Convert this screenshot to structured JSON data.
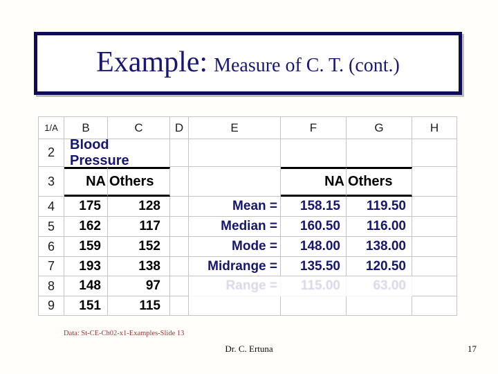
{
  "slide": {
    "title_prefix": "Example:",
    "title_suffix": "Measure of C. T. (cont.)"
  },
  "sheet": {
    "corner_label": "1/A",
    "column_headers": [
      "B",
      "C",
      "D",
      "E",
      "F",
      "G",
      "H"
    ],
    "row2_number": "2",
    "row3_number": "3",
    "merged_title": "Blood Pressure",
    "group_header_left": {
      "na": "NA",
      "others": "Others"
    },
    "group_header_right": {
      "na": "NA",
      "others": "Others"
    },
    "data_rows": [
      {
        "num": "4",
        "na": "175",
        "others": "128",
        "stat_label": "Mean =",
        "stat_na": "158.15",
        "stat_others": "119.50",
        "ghost": false
      },
      {
        "num": "5",
        "na": "162",
        "others": "117",
        "stat_label": "Median =",
        "stat_na": "160.50",
        "stat_others": "116.00",
        "ghost": false
      },
      {
        "num": "6",
        "na": "159",
        "others": "152",
        "stat_label": "Mode =",
        "stat_na": "148.00",
        "stat_others": "138.00",
        "ghost": false
      },
      {
        "num": "7",
        "na": "193",
        "others": "138",
        "stat_label": "Midrange =",
        "stat_na": "135.50",
        "stat_others": "120.50",
        "ghost": false
      },
      {
        "num": "8",
        "na": "148",
        "others": "97",
        "stat_label": "Range =",
        "stat_na": "115.00",
        "stat_others": "63.00",
        "ghost": true
      },
      {
        "num": "9",
        "na": "151",
        "others": "115",
        "stat_label": "",
        "stat_na": "",
        "stat_others": "",
        "ghost": false
      }
    ]
  },
  "footer": {
    "source_note": "Data: St-CE-Ch02-x1-Examples-Slide 13",
    "author": "Dr. C. Ertuna",
    "page_number": "17"
  },
  "colors": {
    "text_navy": "#16166d",
    "border_navy": "#0c0c5a",
    "grid_gray": "#c4c4c4",
    "source_red": "#993333",
    "data_black": "#000000"
  }
}
